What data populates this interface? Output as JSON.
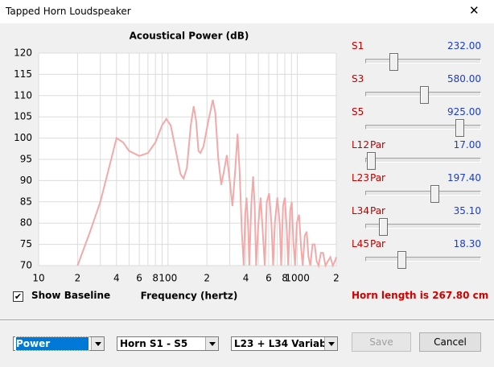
{
  "window": {
    "title": "Tapped Horn Loudspeaker"
  },
  "chart_data": {
    "type": "line",
    "title": "Acoustical Power (dB)",
    "x_label": "Frequency (hertz)",
    "x_scale": "log",
    "grid": true,
    "color": "#f3a9a9",
    "xlim": [
      10,
      2000
    ],
    "xticks": [
      10,
      {
        "value": 20,
        "label": "2"
      },
      {
        "value": 40,
        "label": "4"
      },
      {
        "value": 60,
        "label": "6"
      },
      {
        "value": 80,
        "label": "8"
      },
      100,
      {
        "value": 200,
        "label": "2"
      },
      {
        "value": 400,
        "label": "4"
      },
      {
        "value": 600,
        "label": "6"
      },
      {
        "value": 800,
        "label": "8"
      },
      1000,
      {
        "value": 2000,
        "label": "2"
      }
    ],
    "xminorticks": [
      30,
      50,
      70,
      90,
      300,
      500,
      700,
      900
    ],
    "ylim": [
      70,
      120
    ],
    "yticks": [
      70,
      75,
      80,
      85,
      90,
      95,
      100,
      105,
      110,
      115,
      120
    ],
    "x": [
      20,
      25,
      30,
      35,
      40,
      45,
      50,
      60,
      70,
      80,
      90,
      97,
      105,
      115,
      125,
      132,
      140,
      150,
      158,
      165,
      172,
      178,
      188,
      205,
      222,
      232,
      245,
      258,
      270,
      285,
      300,
      315,
      330,
      345,
      358,
      372,
      385,
      395,
      405,
      418,
      425,
      440,
      455,
      468,
      480,
      500,
      520,
      540,
      560,
      580,
      605,
      630,
      650,
      670,
      700,
      730,
      750,
      775,
      800,
      830,
      850,
      880,
      905,
      930,
      960,
      990,
      1030,
      1070,
      1100,
      1140,
      1180,
      1220,
      1260,
      1310,
      1360,
      1410,
      1460,
      1520,
      1580,
      1650,
      1720,
      1800,
      1880,
      1950,
      2000
    ],
    "values": [
      70,
      78,
      85,
      93,
      100,
      99,
      97,
      95.8,
      96.5,
      99,
      103,
      104.5,
      103,
      97,
      91.5,
      90.5,
      93,
      103,
      107.5,
      104,
      97,
      96.5,
      98,
      104,
      109,
      106,
      95,
      89,
      92,
      96,
      90,
      84,
      92,
      101,
      92,
      78,
      70,
      82,
      86,
      78,
      70,
      84,
      91,
      84,
      70,
      80,
      86,
      78,
      70,
      85,
      87,
      80,
      70,
      80,
      86,
      80,
      70,
      84,
      86,
      78,
      70,
      83,
      85,
      76,
      70,
      80,
      82,
      74,
      70,
      77,
      78,
      72,
      70,
      75,
      75,
      71,
      70,
      73,
      73,
      70,
      71,
      72,
      70,
      71,
      72
    ]
  },
  "sliders": [
    {
      "label": "S1",
      "value": "232.00"
    },
    {
      "label": "S3",
      "value": "580.00"
    },
    {
      "label": "S5",
      "value": "925.00"
    },
    {
      "label": "L12",
      "mode": "Par",
      "value": "17.00"
    },
    {
      "label": "L23",
      "mode": "Par",
      "value": "197.40"
    },
    {
      "label": "L34",
      "mode": "Par",
      "value": "35.10"
    },
    {
      "label": "L45",
      "mode": "Par",
      "value": "18.30"
    }
  ],
  "show_baseline": {
    "label": "Show Baseline",
    "checked": true
  },
  "horn_length": "Horn length is 267.80 cm",
  "dropdowns": [
    {
      "label": "Power",
      "focused": true
    },
    {
      "label": "Horn S1 - S5",
      "focused": false
    },
    {
      "label": "L23 + L34 Variable",
      "focused": false
    }
  ],
  "buttons": [
    {
      "label": "Save",
      "enabled": false
    },
    {
      "label": "Cancel",
      "enabled": true
    }
  ]
}
